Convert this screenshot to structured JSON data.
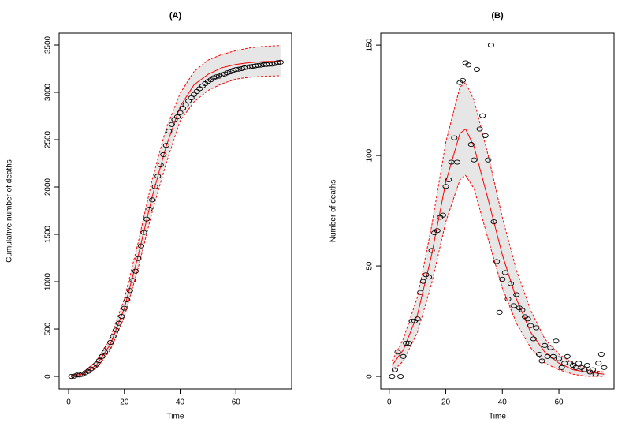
{
  "chart_data": [
    {
      "type": "scatter",
      "title": "(A)",
      "x_label": "Time",
      "y_label": "Cumulative number of deaths",
      "xlim": [
        -3.4,
        80
      ],
      "ylim": [
        -133,
        3625
      ],
      "xticks": [
        0,
        20,
        40,
        60
      ],
      "yticks": [
        0,
        500,
        1000,
        1500,
        2000,
        2500,
        3000,
        3500
      ],
      "band_fill": "#e6e6e6",
      "series": [
        {
          "style": "points",
          "color": "#000000",
          "x": [
            1,
            2,
            3,
            4,
            5,
            6,
            7,
            8,
            9,
            10,
            11,
            12,
            13,
            14,
            15,
            16,
            17,
            18,
            19,
            20,
            21,
            22,
            23,
            24,
            25,
            26,
            27,
            28,
            29,
            30,
            31,
            32,
            33,
            34,
            35,
            36,
            37,
            38,
            39,
            40,
            41,
            42,
            43,
            44,
            45,
            46,
            47,
            48,
            49,
            50,
            51,
            52,
            53,
            54,
            55,
            56,
            57,
            58,
            59,
            60,
            61,
            62,
            63,
            64,
            65,
            66,
            67,
            68,
            69,
            70,
            71,
            72,
            73,
            74,
            75,
            76
          ],
          "values": [
            0,
            3,
            14,
            14,
            23,
            38,
            53,
            78,
            103,
            129,
            167,
            210,
            256,
            301,
            358,
            423,
            489,
            561,
            634,
            720,
            809,
            906,
            1014,
            1111,
            1244,
            1378,
            1520,
            1661,
            1766,
            1864,
            2003,
            2115,
            2233,
            2342,
            2440,
            2590,
            2660,
            2712,
            2741,
            2785,
            2832,
            2867,
            2909,
            2941,
            2978,
            3009,
            3039,
            3066,
            3092,
            3115,
            3132,
            3154,
            3164,
            3171,
            3185,
            3194,
            3207,
            3216,
            3232,
            3240,
            3244,
            3250,
            3259,
            3265,
            3270,
            3274,
            3280,
            3284,
            3287,
            3292,
            3294,
            3297,
            3298,
            3304,
            3314,
            3318
          ]
        },
        {
          "style": "dashed",
          "color": "#ff0000",
          "x": [
            1,
            5,
            10,
            15,
            20,
            25,
            30,
            35,
            40,
            45,
            50,
            55,
            60,
            65,
            70,
            76
          ],
          "values": [
            6,
            40,
            160,
            410,
            820,
            1420,
            2080,
            2620,
            2990,
            3220,
            3340,
            3400,
            3440,
            3470,
            3485,
            3495
          ]
        },
        {
          "style": "dashed",
          "color": "#ff0000",
          "x": [
            1,
            5,
            10,
            15,
            20,
            25,
            30,
            35,
            40,
            45,
            50,
            55,
            60,
            65,
            70,
            76
          ],
          "values": [
            0,
            12,
            85,
            280,
            630,
            1150,
            1740,
            2250,
            2700,
            2900,
            3020,
            3090,
            3140,
            3160,
            3170,
            3175
          ]
        },
        {
          "style": "solid",
          "color": "#ff0000",
          "x": [
            1,
            5,
            10,
            15,
            20,
            25,
            30,
            35,
            40,
            45,
            50,
            55,
            60,
            65,
            70,
            76
          ],
          "values": [
            3,
            25,
            120,
            340,
            720,
            1280,
            1900,
            2430,
            2850,
            3080,
            3190,
            3260,
            3295,
            3315,
            3325,
            3330
          ]
        }
      ]
    },
    {
      "type": "scatter",
      "title": "(B)",
      "x_label": "Time",
      "y_label": "Number of deaths",
      "xlim": [
        -3,
        79.5
      ],
      "ylim": [
        -5.7,
        155.4
      ],
      "xticks": [
        0,
        20,
        40,
        60
      ],
      "yticks": [
        0,
        50,
        100,
        150
      ],
      "band_fill": "#e6e6e6",
      "series": [
        {
          "style": "points",
          "color": "#000000",
          "x": [
            1,
            2,
            3,
            4,
            5,
            6,
            7,
            8,
            9,
            10,
            11,
            12,
            13,
            14,
            15,
            16,
            17,
            18,
            19,
            20,
            21,
            22,
            23,
            24,
            25,
            26,
            27,
            28,
            29,
            30,
            31,
            32,
            33,
            34,
            35,
            36,
            37,
            38,
            39,
            40,
            41,
            42,
            43,
            44,
            45,
            46,
            47,
            48,
            49,
            50,
            51,
            52,
            53,
            54,
            55,
            56,
            57,
            58,
            59,
            60,
            61,
            62,
            63,
            64,
            65,
            66,
            67,
            68,
            69,
            70,
            71,
            72,
            73,
            74,
            75,
            76
          ],
          "values": [
            0,
            3,
            11,
            0,
            9,
            15,
            15,
            25,
            25,
            26,
            38,
            43,
            46,
            45,
            57,
            65,
            66,
            72,
            73,
            86,
            89,
            97,
            108,
            97,
            133,
            134,
            142,
            141,
            105,
            98,
            139,
            112,
            118,
            109,
            98,
            150,
            70,
            52,
            29,
            44,
            47,
            35,
            42,
            32,
            37,
            31,
            30,
            27,
            26,
            23,
            17,
            22,
            10,
            7,
            14,
            9,
            13,
            9,
            16,
            8,
            4,
            6,
            9,
            6,
            5,
            4,
            6,
            4,
            3,
            5,
            2,
            3,
            1,
            6,
            10,
            4
          ]
        },
        {
          "style": "dashed",
          "color": "#ff0000",
          "x": [
            1,
            5,
            10,
            15,
            20,
            25,
            27,
            30,
            35,
            40,
            45,
            50,
            55,
            60,
            65,
            70,
            76
          ],
          "values": [
            7,
            17,
            36,
            68,
            106,
            131,
            133,
            125,
            100,
            72,
            48,
            30,
            17,
            10,
            6,
            3,
            2
          ]
        },
        {
          "style": "dashed",
          "color": "#ff0000",
          "x": [
            1,
            5,
            10,
            15,
            20,
            25,
            27,
            30,
            35,
            40,
            45,
            50,
            55,
            60,
            65,
            70,
            76
          ],
          "values": [
            2,
            7,
            20,
            42,
            70,
            89,
            91,
            85,
            62,
            40,
            24,
            13,
            6,
            3,
            1,
            0,
            0
          ]
        },
        {
          "style": "solid",
          "color": "#ff0000",
          "x": [
            1,
            5,
            10,
            15,
            20,
            25,
            27,
            30,
            35,
            40,
            45,
            50,
            55,
            60,
            65,
            70,
            76
          ],
          "values": [
            5,
            12,
            28,
            55,
            88,
            110,
            112,
            104,
            80,
            55,
            35,
            20,
            11,
            6,
            3,
            2,
            1
          ]
        }
      ]
    }
  ]
}
